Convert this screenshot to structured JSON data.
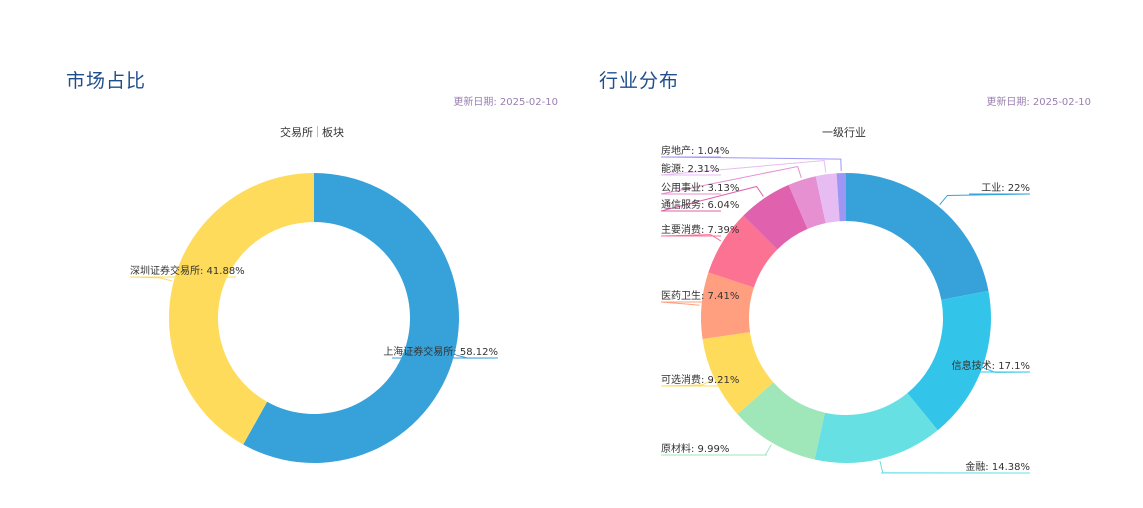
{
  "left_panel": {
    "title": "市场占比",
    "update_date": "更新日期: 2025-02-10",
    "tabs": [
      {
        "label": "交易所"
      },
      {
        "label": "板块"
      }
    ]
  },
  "right_panel": {
    "title": "行业分布",
    "update_date": "更新日期: 2025-02-10",
    "subtitle": "一级行业"
  },
  "chart_data": [
    {
      "type": "pie",
      "title": "市场占比",
      "subtitle": "交易所",
      "donut": true,
      "categories": [
        "上海证券交易所",
        "深圳证券交易所"
      ],
      "values": [
        58.12,
        41.88
      ],
      "colors": [
        "#37a2da",
        "#ffdb5c"
      ],
      "labels": [
        "上海证券交易所: 58.12%",
        "深圳证券交易所: 41.88%"
      ]
    },
    {
      "type": "pie",
      "title": "行业分布",
      "subtitle": "一级行业",
      "donut": true,
      "categories": [
        "工业",
        "信息技术",
        "金融",
        "原材料",
        "可选消费",
        "医药卫生",
        "主要消费",
        "通信服务",
        "公用事业",
        "能源",
        "房地产"
      ],
      "values": [
        22,
        17.1,
        14.38,
        9.99,
        9.21,
        7.41,
        7.39,
        6.04,
        3.13,
        2.31,
        1.04
      ],
      "colors": [
        "#37a2da",
        "#32c5e9",
        "#67e0e3",
        "#9fe6b8",
        "#ffdb5c",
        "#ff9f7f",
        "#fb7293",
        "#e062ae",
        "#e690d1",
        "#e7bcf3",
        "#9d96f5"
      ],
      "labels": [
        "工业: 22%",
        "信息技术: 17.1%",
        "金融: 14.38%",
        "原材料: 9.99%",
        "可选消费: 9.21%",
        "医药卫生: 7.41%",
        "主要消费: 7.39%",
        "通信服务: 6.04%",
        "公用事业: 3.13%",
        "能源: 2.31%",
        "房地产: 1.04%"
      ]
    }
  ]
}
